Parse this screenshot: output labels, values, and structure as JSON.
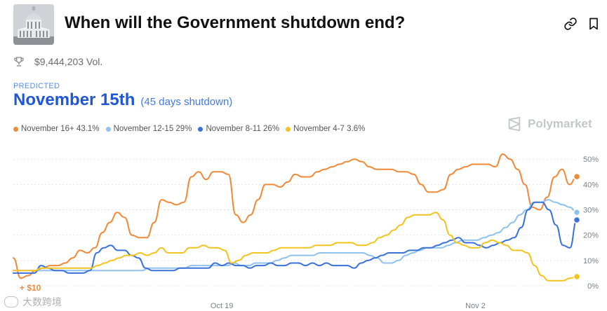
{
  "market": {
    "title": "When will the Government shutdown end?",
    "volume": "$9,444,203 Vol.",
    "predicted_label": "PREDICTED",
    "predicted_value": "November 15th",
    "predicted_sub": "(45 days shutdown)"
  },
  "header": {
    "thumbnail_icon": "capitol-building-icon",
    "link_icon": "link-icon",
    "bookmark_icon": "bookmark-icon"
  },
  "brand": {
    "name": "Polymarket"
  },
  "legend": [
    {
      "label": "November 16+ 43.1%",
      "color": "#f08a3a"
    },
    {
      "label": "November 12-15 29%",
      "color": "#8fc2ee"
    },
    {
      "label": "November 8-11 26%",
      "color": "#3b72d9"
    },
    {
      "label": "November 4-7 3.6%",
      "color": "#f2c41f"
    }
  ],
  "annotation": "+ $10",
  "watermark": "大数跨境",
  "chart_data": {
    "type": "line",
    "x_ticks": [
      "Oct 19",
      "Nov 2"
    ],
    "y_ticks": [
      "50%",
      "40%",
      "30%",
      "20%",
      "10%",
      "0%"
    ],
    "ylim": [
      0,
      52
    ],
    "grid": true,
    "series": [
      {
        "name": "November 16+ 43.1%",
        "color": "#f08a3a",
        "values": [
          11,
          3,
          4,
          6,
          7,
          8,
          8,
          9,
          11,
          14,
          13,
          15,
          21,
          25,
          29,
          27,
          20,
          19,
          19,
          25,
          34,
          33,
          32,
          33,
          43,
          45,
          42,
          45,
          45,
          44,
          28,
          25,
          28,
          34,
          40,
          40,
          39,
          41,
          44,
          43,
          43,
          45,
          46,
          47,
          48,
          49,
          50,
          49,
          47,
          46,
          46,
          46,
          45,
          45,
          44,
          40,
          37,
          37,
          38,
          44,
          46,
          47,
          48,
          48,
          48,
          47,
          52,
          50,
          46,
          40,
          31,
          30,
          35,
          43,
          46,
          40,
          43.1
        ]
      },
      {
        "name": "November 12-15 29%",
        "color": "#8fc2ee",
        "values": [
          6,
          6,
          6,
          6,
          6,
          6,
          6,
          6,
          6,
          6,
          6,
          6,
          6,
          6,
          6,
          6,
          6,
          6,
          6,
          7,
          7,
          7,
          7,
          7,
          7,
          8,
          8,
          8,
          8,
          8,
          8,
          9,
          8,
          8,
          9,
          9,
          9,
          10,
          11,
          12,
          12,
          12,
          12,
          13,
          13,
          13,
          13,
          13,
          13,
          13,
          12,
          11,
          9,
          9,
          10,
          12,
          13,
          14,
          15,
          15,
          15,
          16,
          17,
          18,
          18,
          18,
          19,
          20,
          21,
          23,
          25,
          28,
          30,
          33,
          33,
          34,
          33,
          32,
          31,
          29
        ]
      },
      {
        "name": "November 8-11 26%",
        "color": "#3b72d9",
        "values": [
          5,
          5,
          5,
          5,
          8,
          7,
          6,
          6,
          5,
          5,
          5,
          6,
          13,
          15,
          16,
          14,
          14,
          12,
          11,
          7,
          6,
          6,
          6,
          6,
          7,
          7,
          7,
          7,
          7,
          9,
          8,
          9,
          8,
          8,
          7,
          8,
          8,
          9,
          8,
          8,
          9,
          9,
          8,
          9,
          8,
          9,
          8,
          8,
          8,
          7,
          9,
          10,
          11,
          12,
          13,
          13,
          13,
          14,
          14,
          15,
          15,
          16,
          17,
          18,
          19,
          17,
          17,
          16,
          15,
          16,
          17,
          18,
          19,
          23,
          30,
          33,
          33,
          30,
          24,
          16,
          15,
          26
        ]
      },
      {
        "name": "November 4-7 3.6%",
        "color": "#f2c41f",
        "values": [
          6,
          6,
          6,
          6,
          7,
          7,
          7,
          7,
          7,
          7,
          7,
          7,
          8,
          9,
          10,
          11,
          12,
          12,
          13,
          12,
          13,
          15,
          13,
          13,
          13,
          15,
          15,
          16,
          15,
          15,
          14,
          9,
          10,
          12,
          13,
          13,
          13,
          14,
          15,
          15,
          15,
          15,
          15,
          16,
          16,
          16,
          17,
          17,
          17,
          16,
          16,
          17,
          19,
          20,
          22,
          24,
          27,
          28,
          28,
          28,
          29,
          26,
          20,
          17,
          16,
          15,
          15,
          17,
          18,
          17,
          16,
          14,
          14,
          13,
          8,
          4,
          2,
          2,
          2,
          3,
          3.6
        ]
      }
    ]
  }
}
